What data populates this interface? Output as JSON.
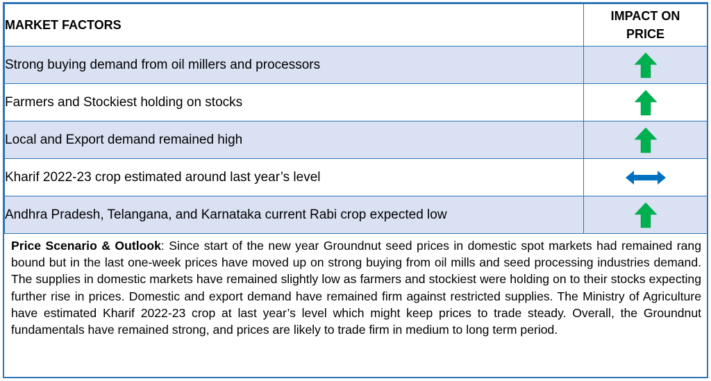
{
  "table": {
    "header": {
      "factor": "MARKET FACTORS",
      "impact": "IMPACT ON PRICE"
    },
    "rows": [
      {
        "factor": "Strong buying demand from oil millers and processors",
        "impact": "up-arrow-icon",
        "impact_color": "#00b050"
      },
      {
        "factor": "Farmers and Stockiest holding on stocks",
        "impact": "up-arrow-icon",
        "impact_color": "#00b050"
      },
      {
        "factor": "Local and Export demand remained high",
        "impact": "up-arrow-icon",
        "impact_color": "#00b050"
      },
      {
        "factor": "Kharif 2022-23 crop estimated around last year’s level",
        "impact": "left-right-arrow-icon",
        "impact_color": "#0070c0"
      },
      {
        "factor": "Andhra Pradesh, Telangana, and Karnataka current Rabi crop expected low",
        "impact": "up-arrow-icon",
        "impact_color": "#00b050"
      }
    ]
  },
  "outlook": {
    "label": "Price Scenario & Outlook",
    "text": ": Since start of the new year Groundnut seed prices in domestic spot markets had remained rang bound but in the last one-week prices have moved up on strong buying from oil mills and seed processing industries demand. The supplies in domestic markets have remained slightly low as farmers and stockiest were holding on to their stocks expecting further rise in prices. Domestic and export demand have remained firm against restricted supplies. The Ministry of Agriculture have estimated Kharif 2022-23 crop at last year’s level which might keep prices to trade steady. Overall, the Groundnut fundamentals have remained strong, and prices are likely to trade firm in medium to long term period."
  },
  "colors": {
    "border": "#2e75b6",
    "shade": "#d9e1f2"
  }
}
